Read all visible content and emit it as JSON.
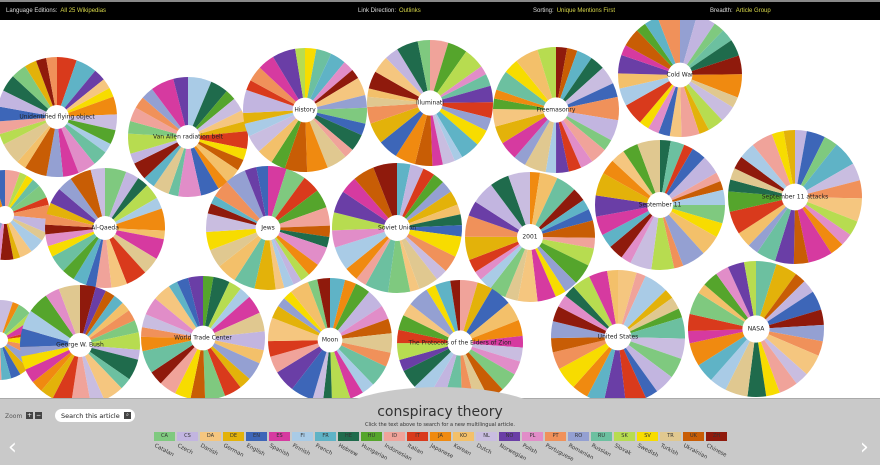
{
  "topbar": {
    "language": {
      "label": "Language Editions:",
      "value": "All 25 Wikipedias"
    },
    "direction": {
      "label": "Link Direction:",
      "value": "Outlinks"
    },
    "sorting": {
      "label": "Sorting:",
      "value": "Unique Mentions First"
    },
    "breadth": {
      "label": "Breadth:",
      "value": "Article Group"
    }
  },
  "articles": [
    "Unidentified flying object",
    "Van Allen radiation belt",
    "History",
    "Illuminati",
    "Freemasonry",
    "Cold War",
    "",
    "Al-Qaeda",
    "Jews",
    "Soviet Union",
    "2001",
    "September 11",
    "September 11 attacks",
    "",
    "George W. Bush",
    "World Trade Center",
    "Moon",
    "The Protocols of the Elders of Zion",
    "United States",
    "NASA"
  ],
  "bottom": {
    "zoom_label": "Zoom",
    "zoom_in": "+",
    "zoom_out": "−",
    "search_label": "Search this article",
    "search_icon": "magnifier-icon",
    "title": "conspiracy theory",
    "hint": "Click the text above to search for a new multilingual article.",
    "prev": "‹",
    "next": "›"
  },
  "languages": [
    {
      "code": "CA",
      "name": "Catalan",
      "color": "#7fc97f"
    },
    {
      "code": "CS",
      "name": "Czech",
      "color": "#c2b5e0"
    },
    {
      "code": "DA",
      "name": "Danish",
      "color": "#f5c67f"
    },
    {
      "code": "DE",
      "name": "German",
      "color": "#e3b20a"
    },
    {
      "code": "EN",
      "name": "English",
      "color": "#3d66b8"
    },
    {
      "code": "ES",
      "name": "Spanish",
      "color": "#d63aa0"
    },
    {
      "code": "FI",
      "name": "Finnish",
      "color": "#a9cbe6"
    },
    {
      "code": "FR",
      "name": "French",
      "color": "#5fb3c6"
    },
    {
      "code": "HE",
      "name": "Hebrew",
      "color": "#1f6b4c"
    },
    {
      "code": "HU",
      "name": "Hungarian",
      "color": "#55a52c"
    },
    {
      "code": "ID",
      "name": "Indonesian",
      "color": "#f0a39a"
    },
    {
      "code": "IT",
      "name": "Italian",
      "color": "#d93a1c"
    },
    {
      "code": "JA",
      "name": "Japanese",
      "color": "#f08a10"
    },
    {
      "code": "KO",
      "name": "Korean",
      "color": "#f3c06a"
    },
    {
      "code": "NL",
      "name": "Dutch",
      "color": "#c9bde0"
    },
    {
      "code": "NO",
      "name": "Norwegian",
      "color": "#6a3ea6"
    },
    {
      "code": "PL",
      "name": "Polish",
      "color": "#e18dc8"
    },
    {
      "code": "PT",
      "name": "Portuguese",
      "color": "#f0915a"
    },
    {
      "code": "RO",
      "name": "Romanian",
      "color": "#94a0d2"
    },
    {
      "code": "RU",
      "name": "Russian",
      "color": "#6cc0a0"
    },
    {
      "code": "SK",
      "name": "Slovak",
      "color": "#b7dc50"
    },
    {
      "code": "SV",
      "name": "Swedish",
      "color": "#f7dc00"
    },
    {
      "code": "TR",
      "name": "Turkish",
      "color": "#e0c890"
    },
    {
      "code": "UK",
      "name": "Ukrainian",
      "color": "#c85d05"
    },
    {
      "code": "ZH",
      "name": "Chinese",
      "color": "#8f1a0c"
    }
  ]
}
